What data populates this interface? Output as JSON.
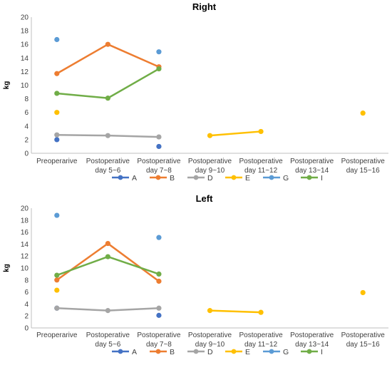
{
  "chart_data": [
    {
      "type": "line",
      "title": "Right",
      "ylabel": "kg",
      "xlabel": "",
      "ylim": [
        0,
        20
      ],
      "yticks": [
        0,
        2,
        4,
        6,
        8,
        10,
        12,
        14,
        16,
        18,
        20
      ],
      "grid": false,
      "legend": "bottom",
      "categories": [
        [
          "Preoperarive"
        ],
        [
          "Postoperative",
          "day 5~6"
        ],
        [
          "Postoperative",
          "day 7~8"
        ],
        [
          "Postoperative",
          "day 9~10"
        ],
        [
          "Postoperative",
          "day 11~12"
        ],
        [
          "Postoperative",
          "day 13~14"
        ],
        [
          "Postoperative",
          "day 15~16"
        ]
      ],
      "series": [
        {
          "name": "A",
          "color": "#4472c4",
          "values": [
            2.0,
            null,
            1.0,
            null,
            null,
            null,
            null
          ]
        },
        {
          "name": "B",
          "color": "#ed7d31",
          "values": [
            11.7,
            16.0,
            12.7,
            null,
            null,
            null,
            null
          ]
        },
        {
          "name": "D",
          "color": "#a5a5a5",
          "values": [
            2.7,
            2.6,
            2.4,
            null,
            null,
            null,
            null
          ]
        },
        {
          "name": "E",
          "color": "#ffc000",
          "values": [
            6.0,
            null,
            null,
            2.6,
            3.2,
            null,
            5.9
          ]
        },
        {
          "name": "G",
          "color": "#5b9bd5",
          "values": [
            16.7,
            null,
            14.9,
            null,
            null,
            null,
            null
          ]
        },
        {
          "name": "I",
          "color": "#70ad47",
          "values": [
            8.8,
            8.1,
            12.4,
            null,
            null,
            null,
            null
          ]
        }
      ]
    },
    {
      "type": "line",
      "title": "Left",
      "ylabel": "kg",
      "xlabel": "",
      "ylim": [
        0,
        20
      ],
      "yticks": [
        0,
        2,
        4,
        6,
        8,
        10,
        12,
        14,
        16,
        18,
        20
      ],
      "grid": false,
      "legend": "bottom",
      "categories": [
        [
          "Preoperarive"
        ],
        [
          "Postoperative",
          "day 5~6"
        ],
        [
          "Postoperative",
          "day 7~8"
        ],
        [
          "Postoperative",
          "day 9~10"
        ],
        [
          "Postoperative",
          "day 11~12"
        ],
        [
          "Postoperative",
          "day 13~14"
        ],
        [
          "Postoperative",
          "day 15~16"
        ]
      ],
      "series": [
        {
          "name": "A",
          "color": "#4472c4",
          "values": [
            3.3,
            null,
            2.1,
            null,
            null,
            null,
            null
          ]
        },
        {
          "name": "B",
          "color": "#ed7d31",
          "values": [
            8.0,
            14.1,
            7.8,
            null,
            null,
            null,
            null
          ]
        },
        {
          "name": "D",
          "color": "#a5a5a5",
          "values": [
            3.3,
            2.9,
            3.3,
            null,
            null,
            null,
            null
          ]
        },
        {
          "name": "E",
          "color": "#ffc000",
          "values": [
            6.3,
            null,
            null,
            2.9,
            2.6,
            null,
            5.9
          ]
        },
        {
          "name": "G",
          "color": "#5b9bd5",
          "values": [
            18.8,
            null,
            15.1,
            null,
            null,
            null,
            null
          ]
        },
        {
          "name": "I",
          "color": "#70ad47",
          "values": [
            8.8,
            11.9,
            9.0,
            null,
            null,
            null,
            null
          ]
        }
      ]
    }
  ]
}
